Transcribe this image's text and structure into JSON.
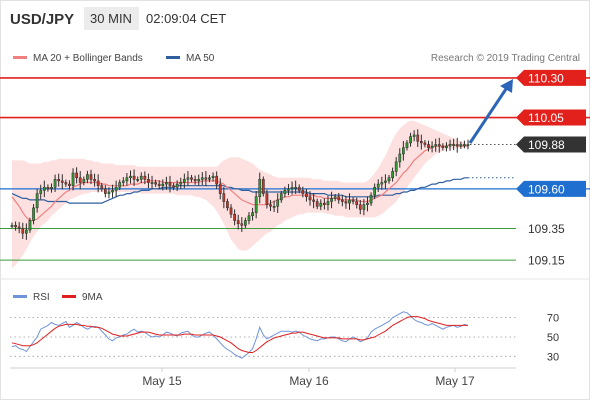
{
  "header": {
    "symbol": "USD/JPY",
    "timeframe": "30 MIN",
    "time": "02:09:04 CET"
  },
  "legend": {
    "ma20_label": "MA 20 + Bollinger Bands",
    "ma50_label": "MA 50",
    "credit": "Research © 2019 Trading Central"
  },
  "rsi_legend": {
    "rsi_label": "RSI",
    "ma9_label": "9MA"
  },
  "colors": {
    "resistance": "#e3211c",
    "support_major": "#1f6fd1",
    "support_minor": "#3c9b3c",
    "last_price": "#333333",
    "bollinger_fill": "#fde0e0",
    "ma20": "#f08080",
    "ma50": "#2f5f9f",
    "candle_up": "#2f9a2f",
    "candle_down": "#c0392b",
    "candle_body": "#2b2b2b",
    "arrow": "#2d66b8",
    "rsi": "#6f93d8",
    "rsi_ma9": "#e02020"
  },
  "chart_data": [
    {
      "type": "candlestick",
      "title": "USD/JPY",
      "timeframe": "30 MIN",
      "x_labels": [
        "May 15",
        "May 16",
        "May 17"
      ],
      "ylim": [
        109.05,
        110.35
      ],
      "price_levels": [
        {
          "label": "110.30",
          "value": 110.3,
          "kind": "resistance"
        },
        {
          "label": "110.05",
          "value": 110.05,
          "kind": "resistance"
        },
        {
          "label": "109.88",
          "value": 109.88,
          "kind": "last"
        },
        {
          "label": "109.60",
          "value": 109.6,
          "kind": "support"
        },
        {
          "label": "109.35",
          "value": 109.35,
          "kind": "support_minor"
        },
        {
          "label": "109.15",
          "value": 109.15,
          "kind": "support_minor"
        }
      ],
      "close": [
        109.37,
        109.36,
        109.35,
        109.32,
        109.34,
        109.4,
        109.48,
        109.57,
        109.59,
        109.61,
        109.6,
        109.61,
        109.66,
        109.65,
        109.64,
        109.63,
        109.62,
        109.7,
        109.67,
        109.64,
        109.66,
        109.69,
        109.66,
        109.65,
        109.62,
        109.6,
        109.57,
        109.58,
        109.59,
        109.61,
        109.64,
        109.65,
        109.67,
        109.68,
        109.66,
        109.66,
        109.68,
        109.66,
        109.64,
        109.64,
        109.63,
        109.62,
        109.63,
        109.64,
        109.62,
        109.61,
        109.63,
        109.64,
        109.66,
        109.67,
        109.66,
        109.65,
        109.66,
        109.67,
        109.66,
        109.67,
        109.68,
        109.63,
        109.57,
        109.52,
        109.48,
        109.44,
        109.4,
        109.38,
        109.37,
        109.4,
        109.43,
        109.45,
        109.55,
        109.66,
        109.57,
        109.5,
        109.49,
        109.49,
        109.53,
        109.57,
        109.59,
        109.6,
        109.61,
        109.61,
        109.59,
        109.57,
        109.55,
        109.53,
        109.52,
        109.49,
        109.51,
        109.5,
        109.52,
        109.54,
        109.55,
        109.53,
        109.52,
        109.51,
        109.53,
        109.52,
        109.5,
        109.47,
        109.5,
        109.51,
        109.56,
        109.61,
        109.63,
        109.64,
        109.65,
        109.67,
        109.71,
        109.77,
        109.82,
        109.86,
        109.89,
        109.93,
        109.94,
        109.9,
        109.89,
        109.88,
        109.86,
        109.87,
        109.88,
        109.87,
        109.86,
        109.87,
        109.88,
        109.88,
        109.87,
        109.88,
        109.88,
        109.88
      ],
      "ma20": [
        109.55,
        109.52,
        109.49,
        109.45,
        109.42,
        109.4,
        109.4,
        109.41,
        109.43,
        109.45,
        109.47,
        109.49,
        109.52,
        109.54,
        109.56,
        109.58,
        109.59,
        109.61,
        109.62,
        109.63,
        109.64,
        109.64,
        109.64,
        109.64,
        109.64,
        109.63,
        109.63,
        109.62,
        109.62,
        109.62,
        109.62,
        109.62,
        109.62,
        109.63,
        109.63,
        109.63,
        109.64,
        109.64,
        109.65,
        109.65,
        109.65,
        109.65,
        109.64,
        109.64,
        109.64,
        109.64,
        109.64,
        109.64,
        109.64,
        109.64,
        109.64,
        109.64,
        109.64,
        109.65,
        109.65,
        109.65,
        109.65,
        109.65,
        109.64,
        109.63,
        109.61,
        109.59,
        109.57,
        109.55,
        109.53,
        109.52,
        109.51,
        109.5,
        109.5,
        109.5,
        109.5,
        109.5,
        109.51,
        109.52,
        109.53,
        109.54,
        109.55,
        109.55,
        109.56,
        109.56,
        109.56,
        109.56,
        109.56,
        109.56,
        109.56,
        109.55,
        109.55,
        109.54,
        109.54,
        109.54,
        109.54,
        109.54,
        109.53,
        109.53,
        109.53,
        109.53,
        109.53,
        109.52,
        109.52,
        109.52,
        109.53,
        109.54,
        109.55,
        109.56,
        109.58,
        109.6,
        109.62,
        109.64,
        109.67,
        109.7,
        109.72,
        109.75,
        109.78,
        109.8,
        109.82,
        109.84,
        109.85,
        109.86,
        109.87,
        109.87,
        109.87,
        109.87,
        109.88,
        109.88,
        109.87,
        109.87,
        109.87,
        109.87
      ],
      "ma50": [
        109.57,
        109.56,
        109.55,
        109.54,
        109.54,
        109.53,
        109.53,
        109.53,
        109.53,
        109.53,
        109.52,
        109.52,
        109.52,
        109.52,
        109.52,
        109.52,
        109.51,
        109.51,
        109.51,
        109.51,
        109.51,
        109.51,
        109.51,
        109.51,
        109.51,
        109.51,
        109.52,
        109.53,
        109.54,
        109.55,
        109.56,
        109.56,
        109.57,
        109.57,
        109.58,
        109.58,
        109.59,
        109.59,
        109.59,
        109.6,
        109.6,
        109.6,
        109.61,
        109.61,
        109.61,
        109.61,
        109.62,
        109.62,
        109.62,
        109.62,
        109.62,
        109.62,
        109.62,
        109.62,
        109.62,
        109.62,
        109.62,
        109.62,
        109.62,
        109.62,
        109.61,
        109.61,
        109.6,
        109.6,
        109.59,
        109.59,
        109.59,
        109.58,
        109.58,
        109.58,
        109.58,
        109.58,
        109.58,
        109.58,
        109.58,
        109.58,
        109.58,
        109.58,
        109.58,
        109.58,
        109.58,
        109.58,
        109.58,
        109.57,
        109.57,
        109.57,
        109.57,
        109.57,
        109.56,
        109.56,
        109.56,
        109.56,
        109.56,
        109.55,
        109.55,
        109.55,
        109.55,
        109.55,
        109.55,
        109.55,
        109.55,
        109.55,
        109.56,
        109.56,
        109.56,
        109.56,
        109.56,
        109.57,
        109.57,
        109.58,
        109.58,
        109.59,
        109.59,
        109.6,
        109.61,
        109.61,
        109.62,
        109.63,
        109.63,
        109.64,
        109.64,
        109.65,
        109.65,
        109.66,
        109.66,
        109.66,
        109.67,
        109.67
      ],
      "bb_upper": [
        109.78,
        109.78,
        109.78,
        109.78,
        109.77,
        109.76,
        109.76,
        109.76,
        109.76,
        109.77,
        109.77,
        109.78,
        109.78,
        109.79,
        109.79,
        109.79,
        109.79,
        109.79,
        109.79,
        109.79,
        109.79,
        109.78,
        109.78,
        109.77,
        109.77,
        109.76,
        109.76,
        109.76,
        109.76,
        109.75,
        109.75,
        109.75,
        109.75,
        109.75,
        109.75,
        109.74,
        109.74,
        109.74,
        109.74,
        109.74,
        109.74,
        109.74,
        109.74,
        109.74,
        109.74,
        109.74,
        109.74,
        109.74,
        109.74,
        109.74,
        109.74,
        109.74,
        109.74,
        109.74,
        109.74,
        109.74,
        109.74,
        109.74,
        109.76,
        109.78,
        109.79,
        109.8,
        109.8,
        109.8,
        109.79,
        109.78,
        109.77,
        109.76,
        109.74,
        109.72,
        109.71,
        109.7,
        109.69,
        109.68,
        109.67,
        109.67,
        109.67,
        109.67,
        109.67,
        109.67,
        109.67,
        109.67,
        109.67,
        109.67,
        109.66,
        109.66,
        109.66,
        109.65,
        109.65,
        109.65,
        109.65,
        109.65,
        109.64,
        109.64,
        109.64,
        109.64,
        109.64,
        109.64,
        109.64,
        109.65,
        109.67,
        109.7,
        109.73,
        109.77,
        109.81,
        109.86,
        109.91,
        109.95,
        109.98,
        110.0,
        110.02,
        110.03,
        110.03,
        110.02,
        110.01,
        110.0,
        109.99,
        109.98,
        109.97,
        109.96,
        109.95,
        109.94,
        109.93,
        109.92,
        109.91,
        109.9,
        109.89,
        109.88
      ],
      "bb_lower": [
        109.1,
        109.12,
        109.15,
        109.18,
        109.22,
        109.26,
        109.3,
        109.33,
        109.36,
        109.38,
        109.4,
        109.43,
        109.45,
        109.47,
        109.49,
        109.51,
        109.53,
        109.54,
        109.55,
        109.56,
        109.57,
        109.57,
        109.58,
        109.58,
        109.58,
        109.58,
        109.58,
        109.58,
        109.58,
        109.58,
        109.58,
        109.58,
        109.58,
        109.58,
        109.58,
        109.58,
        109.57,
        109.57,
        109.57,
        109.57,
        109.57,
        109.57,
        109.57,
        109.57,
        109.57,
        109.57,
        109.56,
        109.56,
        109.56,
        109.56,
        109.56,
        109.55,
        109.55,
        109.54,
        109.53,
        109.51,
        109.49,
        109.46,
        109.42,
        109.38,
        109.33,
        109.28,
        109.25,
        109.22,
        109.21,
        109.21,
        109.22,
        109.24,
        109.26,
        109.28,
        109.3,
        109.32,
        109.33,
        109.35,
        109.37,
        109.38,
        109.4,
        109.41,
        109.42,
        109.43,
        109.44,
        109.44,
        109.45,
        109.45,
        109.45,
        109.45,
        109.45,
        109.45,
        109.44,
        109.44,
        109.43,
        109.43,
        109.43,
        109.42,
        109.42,
        109.42,
        109.42,
        109.42,
        109.42,
        109.42,
        109.42,
        109.42,
        109.43,
        109.44,
        109.46,
        109.48,
        109.5,
        109.52,
        109.55,
        109.58,
        109.61,
        109.64,
        109.67,
        109.7,
        109.73,
        109.76,
        109.78,
        109.8,
        109.82,
        109.83,
        109.84,
        109.85,
        109.85,
        109.85,
        109.86,
        109.86,
        109.86,
        109.86
      ]
    },
    {
      "type": "line",
      "title": "RSI",
      "y_ticks": [
        30,
        50,
        70
      ],
      "ylim": [
        20,
        82
      ],
      "series": [
        {
          "name": "RSI",
          "values": [
            40,
            41,
            38,
            37,
            35,
            40,
            45,
            50,
            58,
            60,
            62,
            65,
            63,
            62,
            64,
            66,
            60,
            62,
            65,
            63,
            60,
            58,
            60,
            61,
            60,
            56,
            52,
            48,
            46,
            49,
            50,
            52,
            53,
            56,
            58,
            55,
            56,
            55,
            52,
            50,
            51,
            50,
            52,
            55,
            54,
            52,
            51,
            54,
            55,
            56,
            52,
            50,
            50,
            52,
            54,
            55,
            52,
            48,
            44,
            40,
            37,
            35,
            32,
            30,
            28,
            31,
            34,
            38,
            48,
            60,
            52,
            48,
            50,
            52,
            54,
            56,
            56,
            56,
            55,
            56,
            55,
            52,
            50,
            48,
            47,
            46,
            48,
            48,
            49,
            50,
            50,
            48,
            46,
            45,
            48,
            50,
            48,
            45,
            47,
            49,
            55,
            58,
            60,
            62,
            64,
            66,
            70,
            72,
            74,
            76,
            75,
            72,
            68,
            66,
            65,
            63,
            62,
            64,
            62,
            60,
            58,
            60,
            61,
            62,
            60,
            61,
            63,
            62
          ]
        },
        {
          "name": "9MA",
          "values": [
            44,
            43,
            42,
            41,
            41,
            41,
            42,
            44,
            47,
            50,
            53,
            56,
            59,
            61,
            62,
            63,
            63,
            63,
            63,
            62,
            62,
            61,
            61,
            60,
            60,
            59,
            57,
            55,
            53,
            52,
            51,
            51,
            51,
            52,
            53,
            54,
            55,
            55,
            55,
            54,
            53,
            52,
            52,
            52,
            52,
            52,
            52,
            52,
            53,
            53,
            53,
            52,
            52,
            52,
            52,
            52,
            52,
            51,
            50,
            48,
            46,
            44,
            41,
            38,
            36,
            35,
            34,
            34,
            36,
            39,
            42,
            45,
            47,
            49,
            50,
            51,
            52,
            53,
            54,
            54,
            55,
            55,
            54,
            53,
            52,
            51,
            50,
            49,
            49,
            49,
            49,
            49,
            48,
            48,
            48,
            48,
            48,
            47,
            47,
            48,
            49,
            50,
            52,
            54,
            56,
            59,
            62,
            64,
            66,
            68,
            70,
            71,
            71,
            71,
            70,
            69,
            67,
            66,
            65,
            64,
            63,
            62,
            62,
            62,
            62,
            62,
            62,
            62
          ]
        }
      ]
    }
  ]
}
